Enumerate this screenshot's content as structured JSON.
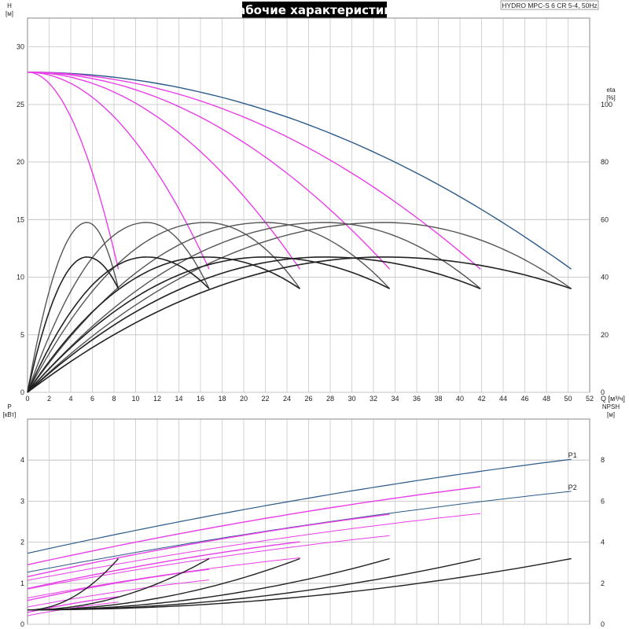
{
  "title": "Рабочие характеристики",
  "subtitle": "HYDRO MPC-S 6 CR 5-4, 50Hz",
  "chart_data": [
    {
      "type": "line",
      "name": "top-panel",
      "x_label": "Q [м³/ч]",
      "y_label_left": [
        "H",
        "[м]"
      ],
      "y_label_right": [
        "eta",
        "[%]"
      ],
      "xlim": [
        0,
        52
      ],
      "ylim_left": [
        0,
        32.5
      ],
      "ylim_right": [
        0,
        130
      ],
      "x_ticks": [
        0,
        2,
        4,
        6,
        8,
        10,
        12,
        14,
        16,
        18,
        20,
        22,
        24,
        26,
        28,
        30,
        32,
        34,
        36,
        38,
        40,
        42,
        44,
        46,
        48,
        50,
        52
      ],
      "y_ticks_left": [
        0,
        5,
        10,
        15,
        20,
        25,
        30
      ],
      "y_ticks_right": [
        0,
        20,
        40,
        60,
        80,
        100
      ],
      "grid": true,
      "series": [
        {
          "group": "H",
          "pumps": 6,
          "shutoff": 27.8,
          "qmax": 50.3,
          "hend": 10.7,
          "color": "#2a5a8a",
          "width": 1.4
        },
        {
          "group": "H",
          "pumps": 5,
          "shutoff": 27.8,
          "qmax": 41.9,
          "hend": 10.7,
          "color": "#e83ee8",
          "width": 1.4
        },
        {
          "group": "H",
          "pumps": 4,
          "shutoff": 27.8,
          "qmax": 33.5,
          "hend": 10.7,
          "color": "#e83ee8",
          "width": 1.4
        },
        {
          "group": "H",
          "pumps": 3,
          "shutoff": 27.8,
          "qmax": 25.2,
          "hend": 10.7,
          "color": "#e83ee8",
          "width": 1.4
        },
        {
          "group": "H",
          "pumps": 2,
          "shutoff": 27.8,
          "qmax": 16.8,
          "hend": 10.7,
          "color": "#e83ee8",
          "width": 1.4
        },
        {
          "group": "H",
          "pumps": 1,
          "shutoff": 27.8,
          "qmax": 8.4,
          "hend": 10.7,
          "color": "#e83ee8",
          "width": 1.4
        },
        {
          "group": "eta-full",
          "pumps": 1,
          "qpeak": 5.5,
          "peak": 59,
          "qmax": 8.4,
          "end": 36,
          "color": "#555555",
          "width": 1.4
        },
        {
          "group": "eta-full",
          "pumps": 2,
          "qpeak": 11,
          "peak": 59,
          "qmax": 16.8,
          "end": 36,
          "color": "#555555",
          "width": 1.4
        },
        {
          "group": "eta-full",
          "pumps": 3,
          "qpeak": 16.5,
          "peak": 59,
          "qmax": 25.2,
          "end": 36,
          "color": "#555555",
          "width": 1.4
        },
        {
          "group": "eta-full",
          "pumps": 4,
          "qpeak": 22,
          "peak": 59,
          "qmax": 33.5,
          "end": 36,
          "color": "#555555",
          "width": 1.4
        },
        {
          "group": "eta-full",
          "pumps": 5,
          "qpeak": 27.5,
          "peak": 59,
          "qmax": 41.9,
          "end": 36,
          "color": "#555555",
          "width": 1.4
        },
        {
          "group": "eta-full",
          "pumps": 6,
          "qpeak": 33,
          "peak": 59,
          "qmax": 50.3,
          "end": 36,
          "color": "#555555",
          "width": 1.4
        },
        {
          "group": "eta-total",
          "pumps": 1,
          "qpeak": 5.5,
          "peak": 47,
          "qmax": 8.4,
          "end": 36,
          "color": "#222222",
          "width": 1.6
        },
        {
          "group": "eta-total",
          "pumps": 2,
          "qpeak": 11,
          "peak": 47,
          "qmax": 16.8,
          "end": 36,
          "color": "#222222",
          "width": 1.6
        },
        {
          "group": "eta-total",
          "pumps": 3,
          "qpeak": 16.5,
          "peak": 47,
          "qmax": 25.2,
          "end": 36,
          "color": "#222222",
          "width": 1.6
        },
        {
          "group": "eta-total",
          "pumps": 4,
          "qpeak": 22,
          "peak": 47,
          "qmax": 33.5,
          "end": 36,
          "color": "#222222",
          "width": 1.6
        },
        {
          "group": "eta-total",
          "pumps": 5,
          "qpeak": 27.5,
          "peak": 47,
          "qmax": 41.9,
          "end": 36,
          "color": "#222222",
          "width": 1.6
        },
        {
          "group": "eta-total",
          "pumps": 6,
          "qpeak": 33,
          "peak": 47,
          "qmax": 50.3,
          "end": 36,
          "color": "#222222",
          "width": 1.6
        }
      ]
    },
    {
      "type": "line",
      "name": "bottom-panel",
      "y_label_left": [
        "P",
        "[кВт]"
      ],
      "y_label_right": [
        "NPSH",
        "[м]"
      ],
      "xlim": [
        0,
        52
      ],
      "ylim_left": [
        0,
        5
      ],
      "ylim_right": [
        0,
        10
      ],
      "y_ticks_left": [
        0,
        1,
        2,
        3,
        4
      ],
      "y_ticks_right": [
        0,
        2,
        4,
        6,
        8
      ],
      "grid": true,
      "series": [
        {
          "name": "P1",
          "group": "P",
          "pumps": 6,
          "p0": 1.73,
          "pend": 4.02,
          "qmax": 50.3,
          "color": "#2a5a8a",
          "width": 1.2,
          "label": true
        },
        {
          "name": "P2",
          "group": "P",
          "pumps": 6,
          "p0": 1.27,
          "pend": 3.24,
          "qmax": 50.3,
          "color": "#2a5a8a",
          "width": 1.0,
          "label": true
        },
        {
          "group": "P",
          "pumps": 5,
          "p0": 1.45,
          "pend": 3.35,
          "qmax": 41.9,
          "color": "#e83ee8",
          "width": 1.4
        },
        {
          "group": "P",
          "pumps": 5,
          "p0": 1.07,
          "pend": 2.7,
          "qmax": 41.9,
          "color": "#e83ee8",
          "width": 1.0
        },
        {
          "group": "P",
          "pumps": 4,
          "p0": 1.16,
          "pend": 2.68,
          "qmax": 33.5,
          "color": "#e83ee8",
          "width": 1.4
        },
        {
          "group": "P",
          "pumps": 4,
          "p0": 0.86,
          "pend": 2.16,
          "qmax": 33.5,
          "color": "#e83ee8",
          "width": 1.0
        },
        {
          "group": "P",
          "pumps": 3,
          "p0": 0.87,
          "pend": 2.01,
          "qmax": 25.2,
          "color": "#e83ee8",
          "width": 1.4
        },
        {
          "group": "P",
          "pumps": 3,
          "p0": 0.64,
          "pend": 1.62,
          "qmax": 25.2,
          "color": "#e83ee8",
          "width": 1.0
        },
        {
          "group": "P",
          "pumps": 2,
          "p0": 0.58,
          "pend": 1.34,
          "qmax": 16.8,
          "color": "#e83ee8",
          "width": 1.4
        },
        {
          "group": "P",
          "pumps": 2,
          "p0": 0.42,
          "pend": 1.08,
          "qmax": 16.8,
          "color": "#e83ee8",
          "width": 1.0
        },
        {
          "group": "P",
          "pumps": 1,
          "p0": 0.29,
          "pend": 0.67,
          "qmax": 8.4,
          "color": "#e83ee8",
          "width": 1.4
        },
        {
          "group": "P",
          "pumps": 1,
          "p0": 0.21,
          "pend": 0.54,
          "qmax": 8.4,
          "color": "#e83ee8",
          "width": 1.0
        },
        {
          "group": "NPSH",
          "pumps": 1,
          "n0": 0.7,
          "nend": 3.2,
          "qmax": 8.4,
          "color": "#222222",
          "width": 1.4
        },
        {
          "group": "NPSH",
          "pumps": 2,
          "n0": 0.7,
          "nend": 3.2,
          "qmax": 16.8,
          "color": "#222222",
          "width": 1.4
        },
        {
          "group": "NPSH",
          "pumps": 3,
          "n0": 0.7,
          "nend": 3.2,
          "qmax": 25.2,
          "color": "#222222",
          "width": 1.4
        },
        {
          "group": "NPSH",
          "pumps": 4,
          "n0": 0.7,
          "nend": 3.2,
          "qmax": 33.5,
          "color": "#222222",
          "width": 1.4
        },
        {
          "group": "NPSH",
          "pumps": 5,
          "n0": 0.7,
          "nend": 3.2,
          "qmax": 41.9,
          "color": "#222222",
          "width": 1.4
        },
        {
          "group": "NPSH",
          "pumps": 6,
          "n0": 0.7,
          "nend": 3.2,
          "qmax": 50.3,
          "color": "#222222",
          "width": 1.4
        }
      ],
      "series_labels": {
        "p1": "P1",
        "p2": "P2"
      }
    }
  ]
}
